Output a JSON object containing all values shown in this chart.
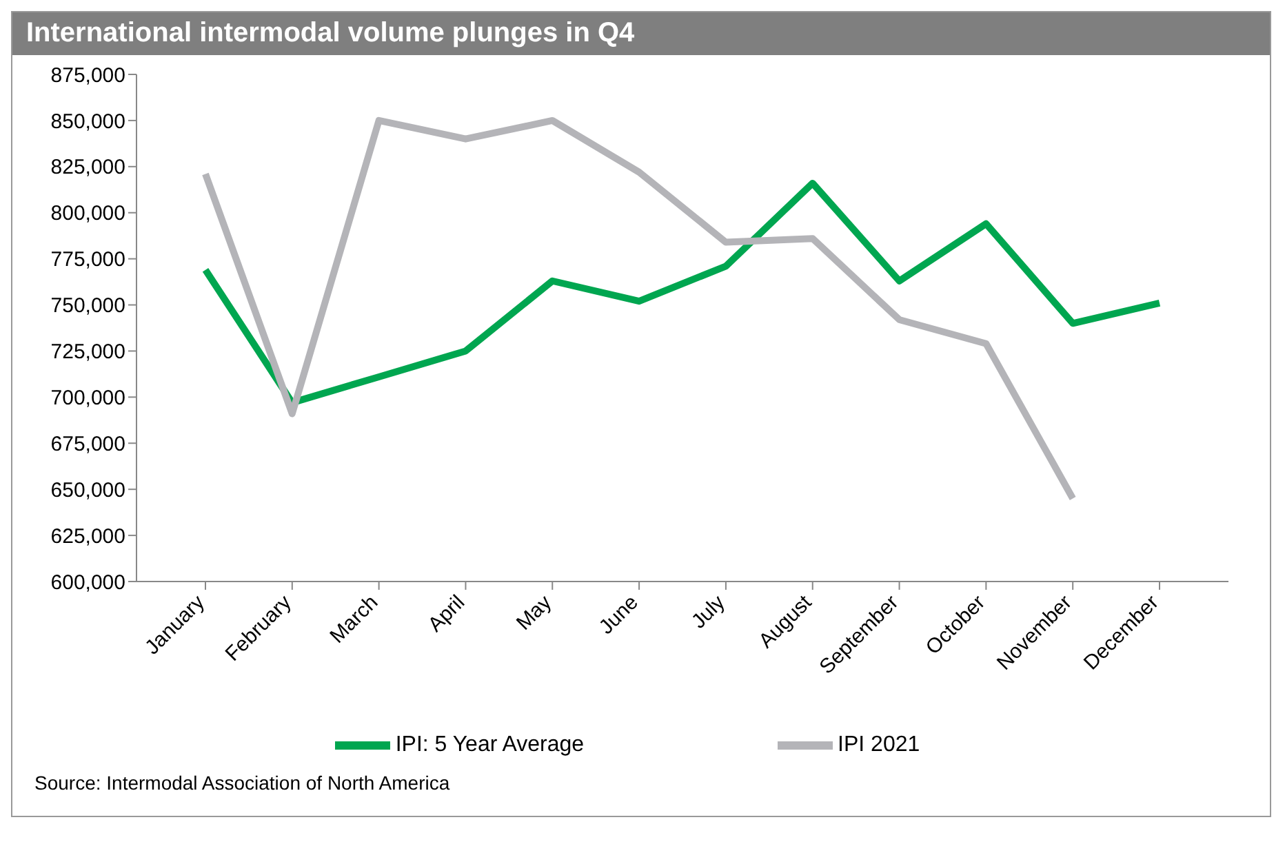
{
  "chart_data": {
    "type": "line",
    "title": "International intermodal volume plunges in Q4",
    "categories": [
      "January",
      "February",
      "March",
      "April",
      "May",
      "June",
      "July",
      "August",
      "September",
      "October",
      "November",
      "December"
    ],
    "series": [
      {
        "name": "IPI: 5 Year Average",
        "color": "#00a650",
        "values": [
          769000,
          697000,
          711000,
          725000,
          763000,
          752000,
          771000,
          816000,
          763000,
          794000,
          740000,
          751000
        ]
      },
      {
        "name": "IPI 2021",
        "color": "#b4b4b8",
        "values": [
          821000,
          691000,
          850000,
          840000,
          850000,
          822000,
          784000,
          786000,
          742000,
          729000,
          645000,
          null
        ]
      }
    ],
    "ylim": [
      600000,
      875000
    ],
    "yticks": [
      {
        "value": 600000,
        "label": "600,000"
      },
      {
        "value": 625000,
        "label": "625,000"
      },
      {
        "value": 650000,
        "label": "650,000"
      },
      {
        "value": 675000,
        "label": "675,000"
      },
      {
        "value": 700000,
        "label": "700,000"
      },
      {
        "value": 725000,
        "label": "725,000"
      },
      {
        "value": 750000,
        "label": "750,000"
      },
      {
        "value": 775000,
        "label": "775,000"
      },
      {
        "value": 800000,
        "label": "800,000"
      },
      {
        "value": 825000,
        "label": "825,000"
      },
      {
        "value": 850000,
        "label": "850,000"
      },
      {
        "value": 875000,
        "label": "875,000"
      }
    ],
    "grid": false,
    "legend": "bottom",
    "marker": "none",
    "line_style": "solid",
    "annotations": [
      "Source: Intermodal Association of North America"
    ]
  }
}
